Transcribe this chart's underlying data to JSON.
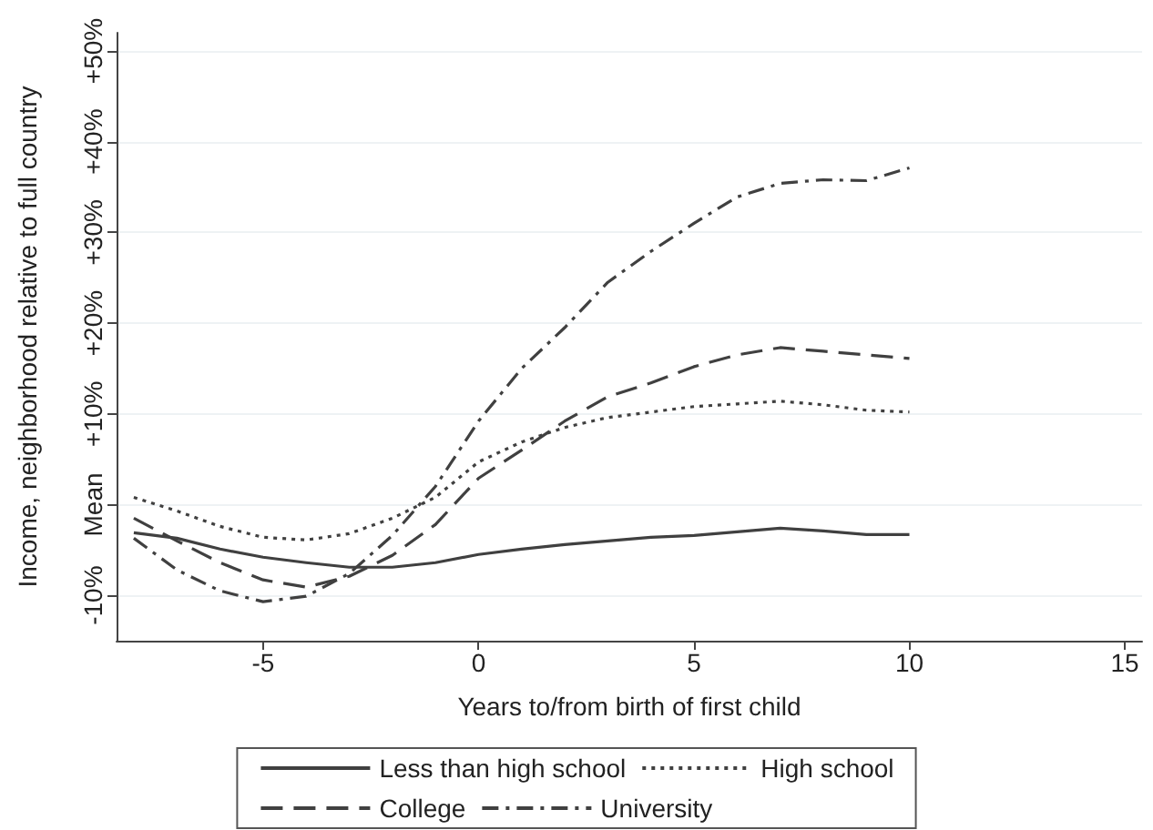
{
  "chart_data": {
    "type": "line",
    "xlabel": "Years to/from birth of first child",
    "ylabel": "Income, neighborhood relative to full country",
    "x": [
      -8,
      -7,
      -6,
      -5,
      -4,
      -3,
      -2,
      -1,
      0,
      1,
      2,
      3,
      4,
      5,
      6,
      7,
      8,
      9,
      10
    ],
    "xlim": [
      -8.4,
      15.4
    ],
    "xticks": [
      -5,
      0,
      5,
      10,
      15
    ],
    "ylim": [
      -15,
      52
    ],
    "yticks": [
      {
        "value": -10,
        "label": "-10%"
      },
      {
        "value": 0,
        "label": "Mean"
      },
      {
        "value": 10,
        "label": "+10%"
      },
      {
        "value": 20,
        "label": "+20%"
      },
      {
        "value": 30,
        "label": "+30%"
      },
      {
        "value": 40,
        "label": "+40%"
      },
      {
        "value": 50,
        "label": "+50%"
      }
    ],
    "grid": "y",
    "legend": "bottom",
    "marker": "none",
    "series": [
      {
        "name": "Less than high school",
        "color": "#404040",
        "line_style": "solid",
        "values": [
          -3.1,
          -3.7,
          -4.9,
          -5.8,
          -6.4,
          -6.9,
          -6.9,
          -6.4,
          -5.5,
          -4.9,
          -4.4,
          -4.0,
          -3.6,
          -3.4,
          -3.0,
          -2.6,
          -2.9,
          -3.3,
          -3.3
        ]
      },
      {
        "name": "High school",
        "color": "#404040",
        "line_style": "dotted",
        "values": [
          0.8,
          -0.7,
          -2.4,
          -3.6,
          -3.9,
          -3.2,
          -1.5,
          0.8,
          4.7,
          6.9,
          8.5,
          9.6,
          10.2,
          10.8,
          11.1,
          11.4,
          11.0,
          10.4,
          10.2
        ]
      },
      {
        "name": "College",
        "color": "#404040",
        "line_style": "dashed",
        "values": [
          -1.5,
          -4.0,
          -6.4,
          -8.3,
          -9.1,
          -7.9,
          -5.6,
          -2.2,
          2.9,
          6.0,
          9.2,
          11.9,
          13.4,
          15.2,
          16.5,
          17.3,
          16.9,
          16.5,
          16.1
        ]
      },
      {
        "name": "University",
        "color": "#404040",
        "line_style": "dashdot",
        "values": [
          -3.7,
          -7.2,
          -9.5,
          -10.7,
          -10.1,
          -7.6,
          -3.4,
          2.0,
          9.2,
          15.0,
          19.5,
          24.5,
          27.9,
          31.0,
          33.9,
          35.4,
          35.8,
          35.7,
          37.1
        ]
      }
    ]
  }
}
